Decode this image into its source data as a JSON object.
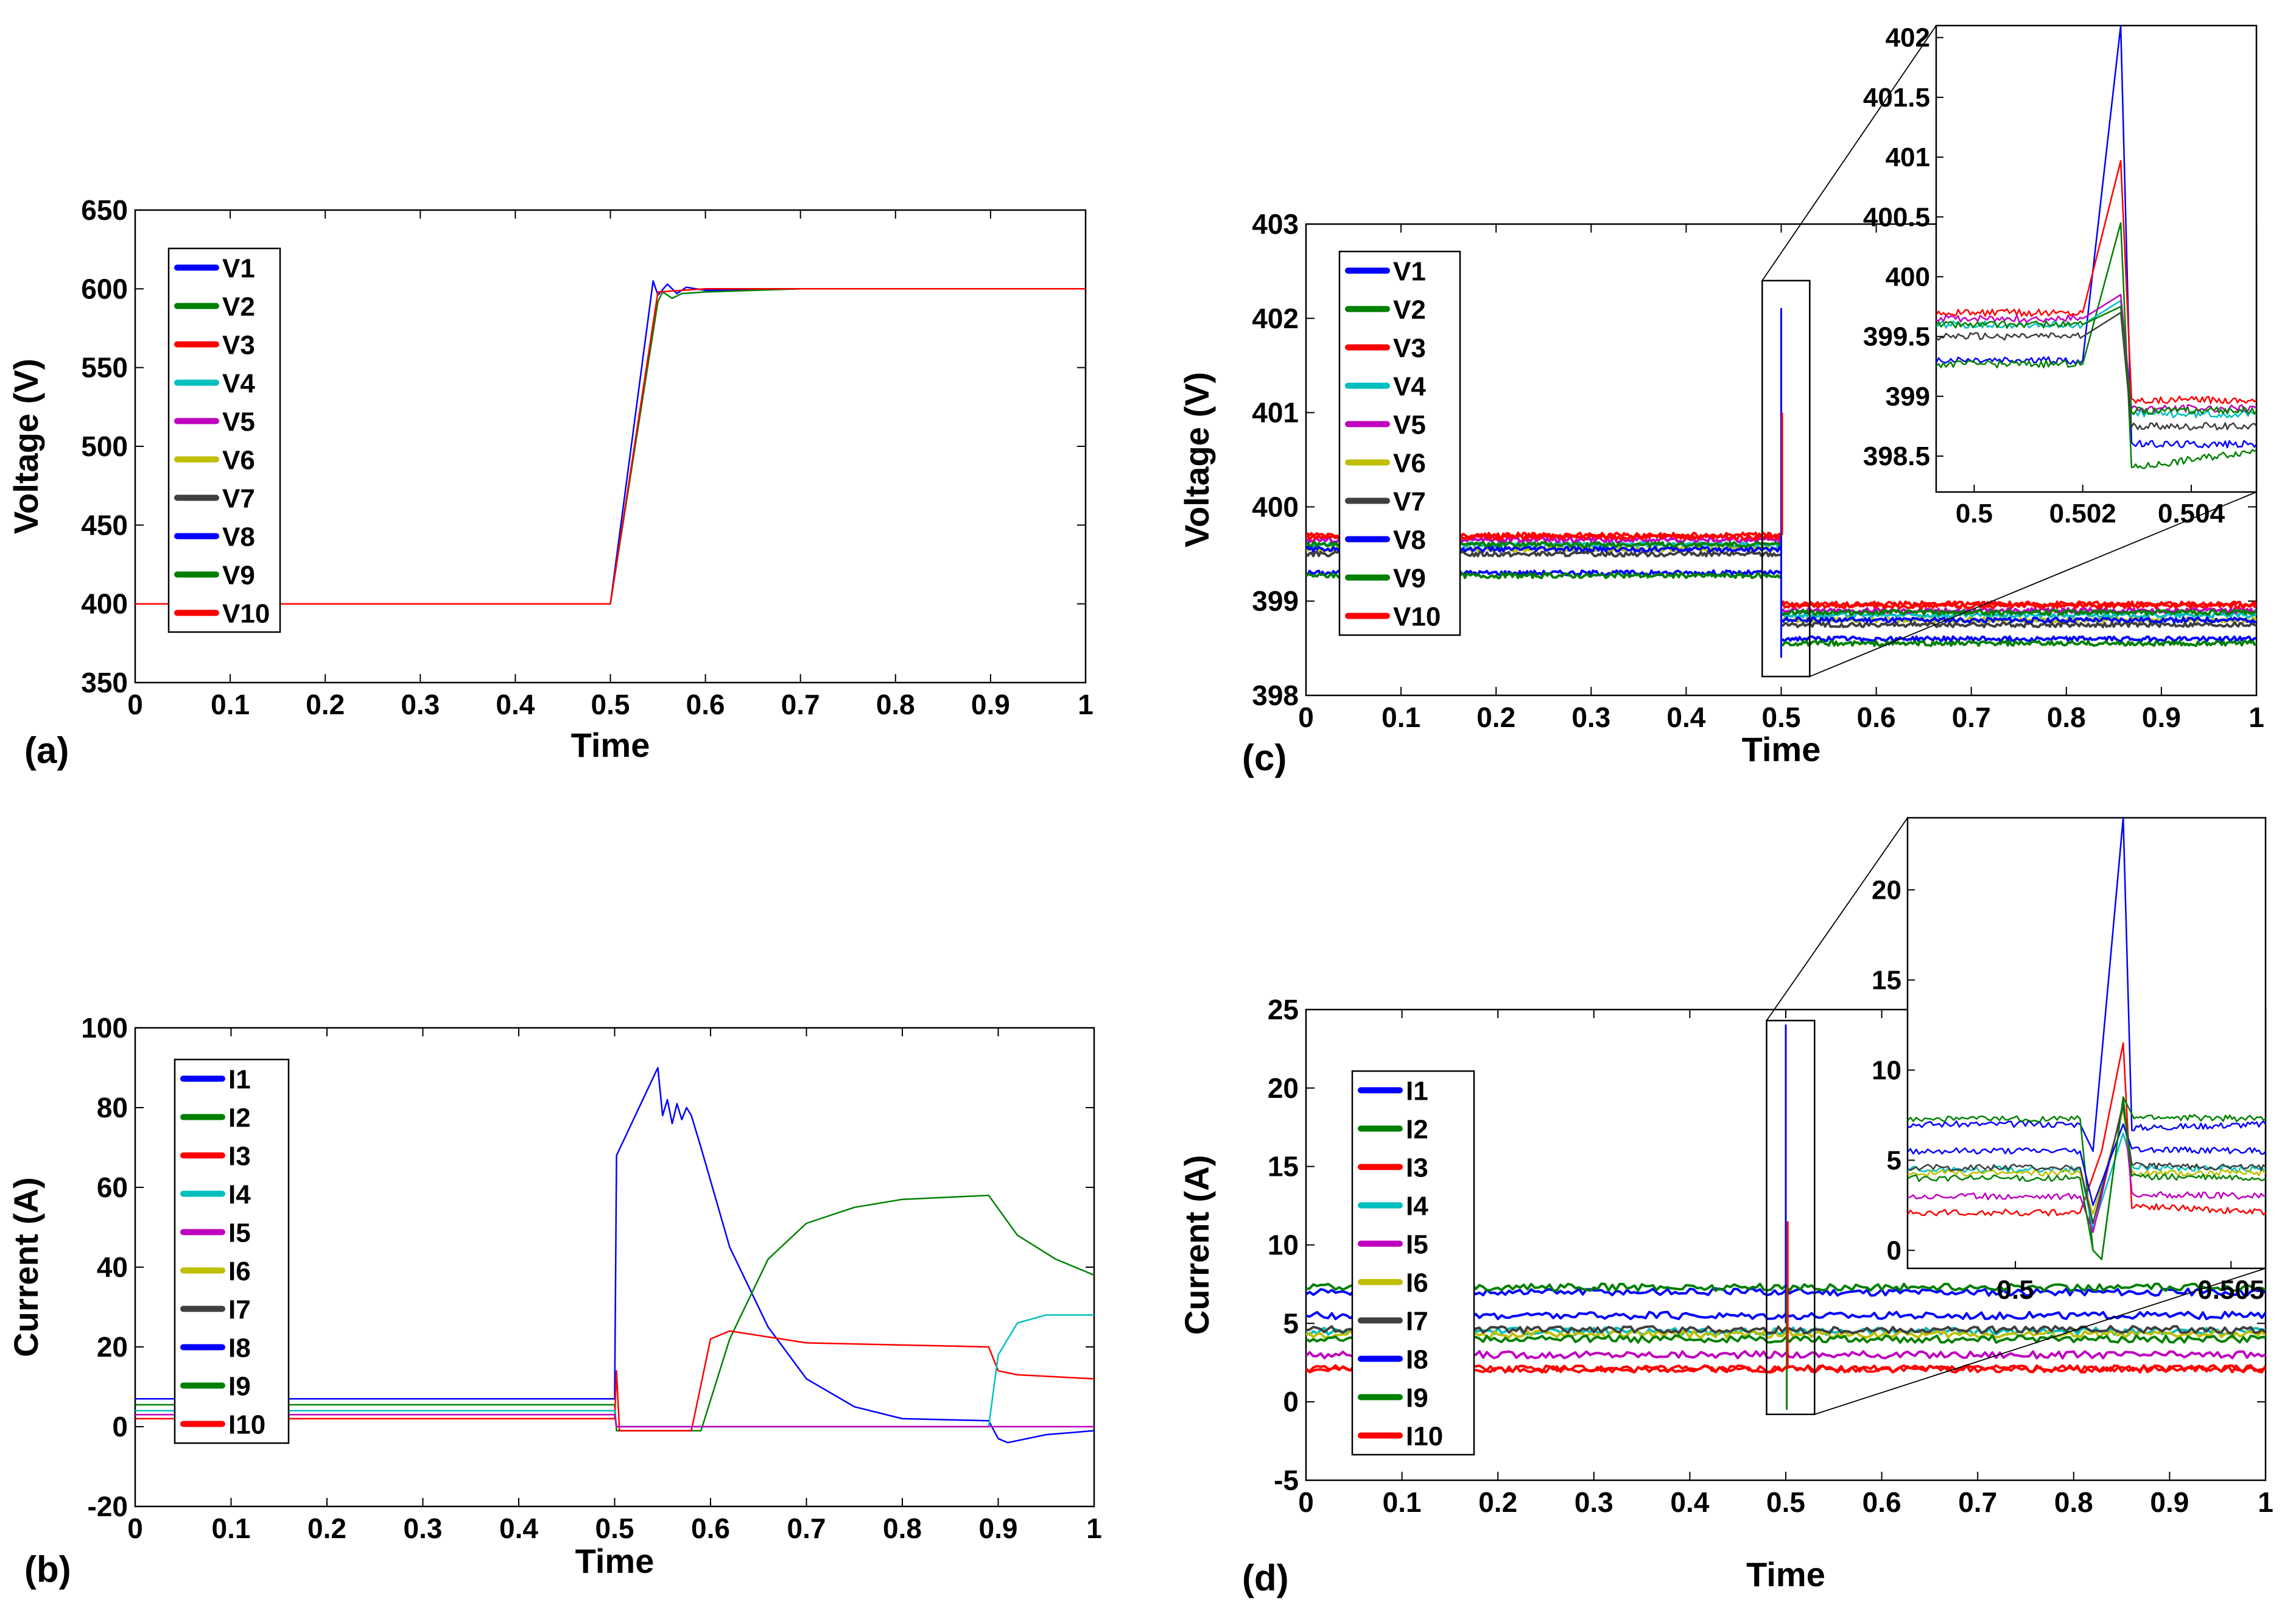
{
  "colors": {
    "blue": "#0000ff",
    "green": "#008000",
    "red": "#ff0000",
    "cyan": "#00bfbf",
    "magenta": "#bf00bf",
    "olive": "#bfbf00",
    "dark": "#3f3f3f"
  },
  "chart_data": [
    {
      "id": "a",
      "panel_label": "(a)",
      "type": "line",
      "title": "",
      "xlabel": "Time",
      "ylabel": "Voltage (V)",
      "xlim": [
        0,
        1
      ],
      "ylim": [
        350,
        650
      ],
      "xticks": [
        0,
        0.1,
        0.2,
        0.3,
        0.4,
        0.5,
        0.6,
        0.7,
        0.8,
        0.9,
        1
      ],
      "xtick_labels": [
        "0",
        "0.1",
        "0.2",
        "0.3",
        "0.4",
        "0.5",
        "0.6",
        "0.7",
        "0.8",
        "0.9",
        "1"
      ],
      "yticks": [
        350,
        400,
        450,
        500,
        550,
        600,
        650
      ],
      "ytick_labels": [
        "350",
        "400",
        "450",
        "500",
        "550",
        "600",
        "650"
      ],
      "legend": [
        "V1",
        "V2",
        "V3",
        "V4",
        "V5",
        "V6",
        "V7",
        "V8",
        "V9",
        "V10"
      ],
      "legend_colors": [
        "#0000ff",
        "#008000",
        "#ff0000",
        "#00bfbf",
        "#bf00bf",
        "#bfbf00",
        "#3f3f3f",
        "#0000ff",
        "#008000",
        "#ff0000"
      ],
      "legend_position": "top-left",
      "series": [
        {
          "name": "V1",
          "color": "#0000ff",
          "x": [
            0,
            0.5,
            0.545,
            0.55,
            0.56,
            0.57,
            0.58,
            0.6,
            0.7,
            1
          ],
          "y": [
            400,
            400,
            605,
            596,
            603,
            597,
            601,
            599,
            600,
            600
          ]
        },
        {
          "name": "V2",
          "color": "#008000",
          "x": [
            0,
            0.5,
            0.55,
            0.555,
            0.565,
            0.575,
            0.6,
            0.7,
            1
          ],
          "y": [
            400,
            400,
            592,
            598,
            594,
            597,
            598,
            600,
            600
          ]
        },
        {
          "name": "V3",
          "color": "#ff0000",
          "x": [
            0,
            0.5,
            0.55,
            0.6,
            0.7,
            1
          ],
          "y": [
            400,
            400,
            598,
            600,
            600,
            600
          ]
        }
      ]
    },
    {
      "id": "b",
      "panel_label": "(b)",
      "type": "line",
      "title": "",
      "xlabel": "Time",
      "ylabel": "Current (A)",
      "xlim": [
        0,
        1
      ],
      "ylim": [
        -20,
        100
      ],
      "xticks": [
        0,
        0.1,
        0.2,
        0.3,
        0.4,
        0.5,
        0.6,
        0.7,
        0.8,
        0.9,
        1
      ],
      "xtick_labels": [
        "0",
        "0.1",
        "0.2",
        "0.3",
        "0.4",
        "0.5",
        "0.6",
        "0.7",
        "0.8",
        "0.9",
        "1"
      ],
      "yticks": [
        -20,
        0,
        20,
        40,
        60,
        80,
        100
      ],
      "ytick_labels": [
        "-20",
        "0",
        "20",
        "40",
        "60",
        "80",
        "100"
      ],
      "legend": [
        "I1",
        "I2",
        "I3",
        "I4",
        "I5",
        "I6",
        "I7",
        "I8",
        "I9",
        "I10"
      ],
      "legend_colors": [
        "#0000ff",
        "#008000",
        "#ff0000",
        "#00bfbf",
        "#bf00bf",
        "#bfbf00",
        "#3f3f3f",
        "#0000ff",
        "#008000",
        "#ff0000"
      ],
      "legend_position": "top-left",
      "series": [
        {
          "name": "I1",
          "color": "#0000ff",
          "x": [
            0,
            0.5,
            0.502,
            0.545,
            0.55,
            0.555,
            0.56,
            0.565,
            0.57,
            0.575,
            0.58,
            0.59,
            0.62,
            0.66,
            0.7,
            0.75,
            0.8,
            0.89,
            0.9,
            0.91,
            0.95,
            1
          ],
          "y": [
            7,
            7,
            68,
            90,
            78,
            82,
            76,
            81,
            77,
            80,
            78,
            70,
            45,
            25,
            12,
            5,
            2,
            1.5,
            -3,
            -4,
            -2,
            -1
          ]
        },
        {
          "name": "I2",
          "color": "#008000",
          "x": [
            0,
            0.5,
            0.502,
            0.59,
            0.62,
            0.66,
            0.7,
            0.75,
            0.8,
            0.89,
            0.92,
            0.96,
            1
          ],
          "y": [
            5.5,
            5.5,
            -1,
            -1,
            22,
            42,
            51,
            55,
            57,
            58,
            48,
            42,
            38
          ]
        },
        {
          "name": "I3",
          "color": "#ff0000",
          "x": [
            0,
            0.5,
            0.502,
            0.505,
            0.58,
            0.6,
            0.62,
            0.7,
            0.89,
            0.9,
            0.92,
            1
          ],
          "y": [
            2,
            2,
            14,
            -1,
            -1,
            22,
            24,
            21,
            20,
            14,
            13,
            12
          ]
        },
        {
          "name": "I4",
          "color": "#00bfbf",
          "x": [
            0,
            0.5,
            0.502,
            0.89,
            0.9,
            0.92,
            0.95,
            1
          ],
          "y": [
            4,
            4,
            0,
            0,
            18,
            26,
            28,
            28
          ]
        },
        {
          "name": "I5",
          "color": "#bf00bf",
          "x": [
            0,
            0.5,
            0.502,
            1
          ],
          "y": [
            3,
            3,
            0,
            0
          ]
        }
      ]
    },
    {
      "id": "c",
      "panel_label": "(c)",
      "type": "line",
      "title": "",
      "xlabel": "Time",
      "ylabel": "Voltage (V)",
      "xlim": [
        0,
        1
      ],
      "ylim": [
        398,
        403
      ],
      "xticks": [
        0,
        0.1,
        0.2,
        0.3,
        0.4,
        0.5,
        0.6,
        0.7,
        0.8,
        0.9,
        1
      ],
      "xtick_labels": [
        "0",
        "0.1",
        "0.2",
        "0.3",
        "0.4",
        "0.5",
        "0.6",
        "0.7",
        "0.8",
        "0.9",
        "1"
      ],
      "yticks": [
        398,
        399,
        400,
        401,
        402,
        403
      ],
      "ytick_labels": [
        "398",
        "399",
        "400",
        "401",
        "402",
        "403"
      ],
      "legend": [
        "V1",
        "V2",
        "V3",
        "V4",
        "V5",
        "V6",
        "V7",
        "V8",
        "V9",
        "V10"
      ],
      "legend_colors": [
        "#0000ff",
        "#008000",
        "#ff0000",
        "#00bfbf",
        "#bf00bf",
        "#bfbf00",
        "#3f3f3f",
        "#0000ff",
        "#008000",
        "#ff0000"
      ],
      "legend_position": "top-left",
      "series": [
        {
          "name": "V1",
          "color": "#0000ff",
          "pre": 399.3,
          "post": 398.6
        },
        {
          "name": "V2",
          "color": "#008000",
          "pre": 399.27,
          "post": 398.55
        },
        {
          "name": "V3",
          "color": "#ff0000",
          "pre": 399.7,
          "post": 398.97
        },
        {
          "name": "V4",
          "color": "#00bfbf",
          "pre": 399.6,
          "post": 398.85
        },
        {
          "name": "V5",
          "color": "#bf00bf",
          "pre": 399.65,
          "post": 398.9
        },
        {
          "name": "V6",
          "color": "#bfbf00",
          "pre": 399.55,
          "post": 398.8
        },
        {
          "name": "V7",
          "color": "#3f3f3f",
          "pre": 399.5,
          "post": 398.75
        },
        {
          "name": "V8",
          "color": "#0000ff",
          "pre": 399.55,
          "post": 398.8
        },
        {
          "name": "V9",
          "color": "#008000",
          "pre": 399.6,
          "post": 398.88
        },
        {
          "name": "V10",
          "color": "#ff0000",
          "pre": 399.68,
          "post": 398.95
        }
      ],
      "spike": {
        "x": 0.5,
        "peak": 402.1,
        "peak_red": 401
      },
      "zoom_box": {
        "xlim": [
          0.48,
          0.53
        ],
        "ylim": [
          398.2,
          402.4
        ]
      },
      "inset": {
        "xlim": [
          0.4993,
          0.5052
        ],
        "ylim": [
          398.2,
          402.1
        ],
        "xticks": [
          0.5,
          0.502,
          0.504
        ],
        "xtick_labels": [
          "0.5",
          "0.502",
          "0.504"
        ],
        "yticks": [
          398.5,
          399,
          399.5,
          400,
          400.5,
          401,
          401.5,
          402
        ],
        "ytick_labels": [
          "398.5",
          "399",
          "399.5",
          "400",
          "400.5",
          "401",
          "401.5",
          "402"
        ],
        "series": [
          {
            "color": "#0000ff",
            "x": [
              0.4993,
              0.502,
              0.5027,
              0.5029,
              0.5052
            ],
            "y": [
              399.3,
              399.3,
              402.1,
              398.6,
              398.6
            ]
          },
          {
            "color": "#ff0000",
            "x": [
              0.4993,
              0.502,
              0.5027,
              0.5029,
              0.5052
            ],
            "y": [
              399.7,
              399.7,
              400.97,
              398.97,
              398.97
            ]
          },
          {
            "color": "#008000",
            "x": [
              0.4993,
              0.502,
              0.5027,
              0.5029,
              0.5052
            ],
            "y": [
              399.27,
              399.27,
              400.45,
              398.4,
              398.55
            ]
          },
          {
            "color": "#00bfbf",
            "x": [
              0.4993,
              0.502,
              0.5027,
              0.5029,
              0.5052
            ],
            "y": [
              399.6,
              399.6,
              399.8,
              398.85,
              398.85
            ]
          },
          {
            "color": "#bf00bf",
            "x": [
              0.4993,
              0.502,
              0.5027,
              0.5029,
              0.5052
            ],
            "y": [
              399.65,
              399.65,
              399.85,
              398.9,
              398.9
            ]
          },
          {
            "color": "#3f3f3f",
            "x": [
              0.4993,
              0.502,
              0.5027,
              0.5029,
              0.5052
            ],
            "y": [
              399.5,
              399.5,
              399.7,
              398.75,
              398.75
            ]
          },
          {
            "color": "#008000",
            "x": [
              0.4993,
              0.502,
              0.5027,
              0.5029,
              0.5052
            ],
            "y": [
              399.6,
              399.6,
              399.75,
              398.88,
              398.88
            ]
          }
        ]
      }
    },
    {
      "id": "d",
      "panel_label": "(d)",
      "type": "line",
      "title": "",
      "xlabel": "Time",
      "ylabel": "Current (A)",
      "xlim": [
        0,
        1
      ],
      "ylim": [
        -5,
        25
      ],
      "xticks": [
        0,
        0.1,
        0.2,
        0.3,
        0.4,
        0.5,
        0.6,
        0.7,
        0.8,
        0.9,
        1
      ],
      "xtick_labels": [
        "0",
        "0.1",
        "0.2",
        "0.3",
        "0.4",
        "0.5",
        "0.6",
        "0.7",
        "0.8",
        "0.9",
        "1"
      ],
      "yticks": [
        -5,
        0,
        5,
        10,
        15,
        20,
        25
      ],
      "ytick_labels": [
        "-5",
        "0",
        "5",
        "10",
        "15",
        "20",
        "25"
      ],
      "legend": [
        "I1",
        "I2",
        "I3",
        "I4",
        "I5",
        "I6",
        "I7",
        "I8",
        "I9",
        "I10"
      ],
      "legend_colors": [
        "#0000ff",
        "#008000",
        "#ff0000",
        "#00bfbf",
        "#bf00bf",
        "#bfbf00",
        "#3f3f3f",
        "#0000ff",
        "#008000",
        "#ff0000"
      ],
      "legend_position": "top-left",
      "series": [
        {
          "name": "I1",
          "color": "#0000ff",
          "level": 7.0
        },
        {
          "name": "I2",
          "color": "#008000",
          "level": 7.3
        },
        {
          "name": "I3",
          "color": "#ff0000",
          "level": 2.1
        },
        {
          "name": "I4",
          "color": "#00bfbf",
          "level": 4.5
        },
        {
          "name": "I5",
          "color": "#bf00bf",
          "level": 3.0
        },
        {
          "name": "I6",
          "color": "#bfbf00",
          "level": 4.3
        },
        {
          "name": "I7",
          "color": "#3f3f3f",
          "level": 4.6
        },
        {
          "name": "I8",
          "color": "#0000ff",
          "level": 5.5
        },
        {
          "name": "I9",
          "color": "#008000",
          "level": 4.0
        },
        {
          "name": "I10",
          "color": "#ff0000",
          "level": 2.1
        }
      ],
      "spike": {
        "x": 0.5,
        "peak": 24,
        "min": -0.5,
        "peak_red": 11.5
      },
      "zoom_box": {
        "xlim": [
          0.48,
          0.53
        ],
        "ylim": [
          -0.8,
          24.3
        ]
      },
      "inset": {
        "xlim": [
          0.4975,
          0.5058
        ],
        "ylim": [
          -1,
          24
        ],
        "xticks": [
          0.5,
          0.505
        ],
        "xtick_labels": [
          "0.5",
          "0.505"
        ],
        "yticks": [
          0,
          5,
          10,
          15,
          20
        ],
        "ytick_labels": [
          "0",
          "5",
          "10",
          "15",
          "20"
        ],
        "series": [
          {
            "color": "#0000ff",
            "x": [
              0.4975,
              0.5015,
              0.5018,
              0.5025,
              0.5027,
              0.5058
            ],
            "y": [
              7,
              7,
              5.5,
              24,
              6.8,
              7
            ]
          },
          {
            "color": "#ff0000",
            "x": [
              0.4975,
              0.5015,
              0.502,
              0.5025,
              0.5027,
              0.5058
            ],
            "y": [
              2.1,
              2.1,
              5.5,
              11.5,
              2.5,
              2.1
            ]
          },
          {
            "color": "#008000",
            "x": [
              0.4975,
              0.5015,
              0.5018,
              0.502,
              0.5025,
              0.5027,
              0.5058
            ],
            "y": [
              7.3,
              7.3,
              0,
              -0.5,
              8.5,
              7.4,
              7.3
            ]
          },
          {
            "color": "#00bfbf",
            "x": [
              0.4975,
              0.5015,
              0.5018,
              0.5025,
              0.5027,
              0.5058
            ],
            "y": [
              4.5,
              4.5,
              1.2,
              6.5,
              4.6,
              4.5
            ]
          },
          {
            "color": "#bf00bf",
            "x": [
              0.4975,
              0.5015,
              0.5018,
              0.5025,
              0.5027,
              0.5058
            ],
            "y": [
              3.0,
              3.0,
              1.0,
              8.2,
              3.1,
              3.0
            ]
          },
          {
            "color": "#bfbf00",
            "x": [
              0.4975,
              0.5015,
              0.5018,
              0.5025,
              0.5027,
              0.5058
            ],
            "y": [
              4.3,
              4.3,
              2.0,
              7.8,
              4.3,
              4.3
            ]
          },
          {
            "color": "#3f3f3f",
            "x": [
              0.4975,
              0.5015,
              0.5018,
              0.5025,
              0.5027,
              0.5058
            ],
            "y": [
              4.6,
              4.6,
              1.5,
              8.0,
              4.7,
              4.6
            ]
          },
          {
            "color": "#0000ff",
            "x": [
              0.4975,
              0.5015,
              0.5018,
              0.5025,
              0.5027,
              0.5058
            ],
            "y": [
              5.5,
              5.5,
              2.5,
              7.0,
              5.6,
              5.5
            ]
          },
          {
            "color": "#008000",
            "x": [
              0.4975,
              0.5015,
              0.5018,
              0.502,
              0.5025,
              0.5027,
              0.5058
            ],
            "y": [
              4.0,
              4.0,
              0,
              -0.5,
              8.5,
              4.1,
              4.0
            ]
          }
        ]
      }
    }
  ]
}
